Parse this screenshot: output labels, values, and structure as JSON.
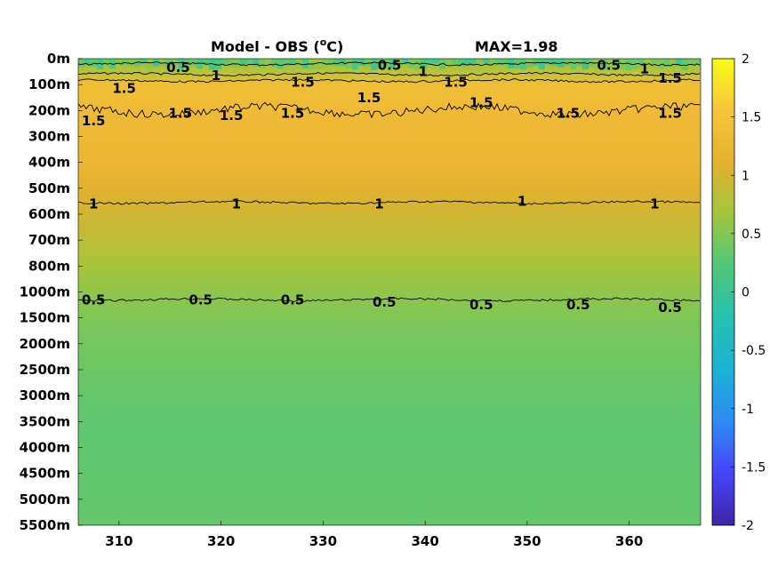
{
  "chart_data": {
    "type": "heatmap",
    "title": "Model - OBS (",
    "title_unit_sup": "o",
    "title_unit_tail": "C)",
    "max_label": "MAX=1.98",
    "y_tick_labels": [
      "0m",
      "100m",
      "200m",
      "300m",
      "400m",
      "500m",
      "600m",
      "700m",
      "800m",
      "1000m",
      "1500m",
      "2000m",
      "2500m",
      "3000m",
      "3500m",
      "4000m",
      "4500m",
      "5000m",
      "5500m"
    ],
    "x_ticks": [
      310,
      320,
      330,
      340,
      350,
      360
    ],
    "x_range": [
      306,
      367
    ],
    "colorbar": {
      "ticks": [
        2,
        1.5,
        1,
        0.5,
        0,
        -0.5,
        -1,
        -1.5,
        -2
      ],
      "tick_labels": [
        "2",
        "1.5",
        "1",
        "0.5",
        "0",
        "-0.5",
        "-1",
        "-1.5",
        "-2"
      ],
      "range": [
        -2,
        2
      ],
      "colormap": [
        "#3e26a8",
        "#4743f8",
        "#2d8cf3",
        "#1bb2d5",
        "#26c0b0",
        "#50c77a",
        "#a0c63e",
        "#e5b02f",
        "#f7c53c",
        "#f9fb15"
      ]
    },
    "depth_profile": [
      {
        "depth_index": 0,
        "value": 0.2
      },
      {
        "depth_index": 0.3,
        "value": 0.7
      },
      {
        "depth_index": 1,
        "value": 1.4
      },
      {
        "depth_index": 2,
        "value": 1.35
      },
      {
        "depth_index": 4,
        "value": 1.25
      },
      {
        "depth_index": 5,
        "value": 1.1
      },
      {
        "depth_index": 6,
        "value": 0.98
      },
      {
        "depth_index": 7,
        "value": 0.85
      },
      {
        "depth_index": 8,
        "value": 0.72
      },
      {
        "depth_index": 9,
        "value": 0.58
      },
      {
        "depth_index": 10,
        "value": 0.48
      },
      {
        "depth_index": 11,
        "value": 0.42
      },
      {
        "depth_index": 12,
        "value": 0.38
      },
      {
        "depth_index": 14,
        "value": 0.3
      },
      {
        "depth_index": 18,
        "value": 0.33
      }
    ],
    "contour_labels": [
      {
        "text": "0.5",
        "x": 315.8,
        "depth_index": 0.35
      },
      {
        "text": "1",
        "x": 319.5,
        "depth_index": 0.65
      },
      {
        "text": "1.5",
        "x": 310.5,
        "depth_index": 1.15
      },
      {
        "text": "1.5",
        "x": 328.0,
        "depth_index": 0.9
      },
      {
        "text": "0.5",
        "x": 336.5,
        "depth_index": 0.25
      },
      {
        "text": "1",
        "x": 339.8,
        "depth_index": 0.5
      },
      {
        "text": "1.5",
        "x": 343.0,
        "depth_index": 0.9
      },
      {
        "text": "0.5",
        "x": 358.0,
        "depth_index": 0.25
      },
      {
        "text": "1",
        "x": 361.5,
        "depth_index": 0.4
      },
      {
        "text": "1.5",
        "x": 364.0,
        "depth_index": 0.75
      },
      {
        "text": "1.5",
        "x": 307.5,
        "depth_index": 2.4
      },
      {
        "text": "1.5",
        "x": 316.0,
        "depth_index": 2.1
      },
      {
        "text": "1.5",
        "x": 321.0,
        "depth_index": 2.2
      },
      {
        "text": "1.5",
        "x": 327.0,
        "depth_index": 2.1
      },
      {
        "text": "1.5",
        "x": 334.5,
        "depth_index": 1.5
      },
      {
        "text": "1.5",
        "x": 345.5,
        "depth_index": 1.7
      },
      {
        "text": "1.5",
        "x": 354.0,
        "depth_index": 2.1
      },
      {
        "text": "1.5",
        "x": 364.0,
        "depth_index": 2.1
      },
      {
        "text": "1",
        "x": 307.5,
        "depth_index": 5.6
      },
      {
        "text": "1",
        "x": 321.5,
        "depth_index": 5.6
      },
      {
        "text": "1",
        "x": 335.5,
        "depth_index": 5.6
      },
      {
        "text": "1",
        "x": 349.5,
        "depth_index": 5.5
      },
      {
        "text": "1",
        "x": 362.5,
        "depth_index": 5.6
      },
      {
        "text": "0.5",
        "x": 307.5,
        "depth_index": 9.3
      },
      {
        "text": "0.5",
        "x": 318.0,
        "depth_index": 9.3
      },
      {
        "text": "0.5",
        "x": 327.0,
        "depth_index": 9.3
      },
      {
        "text": "0.5",
        "x": 336.0,
        "depth_index": 9.4
      },
      {
        "text": "0.5",
        "x": 345.5,
        "depth_index": 9.5
      },
      {
        "text": "0.5",
        "x": 355.0,
        "depth_index": 9.5
      },
      {
        "text": "0.5",
        "x": 364.0,
        "depth_index": 9.6
      }
    ],
    "contour_lines": [
      {
        "level": 0.5,
        "depth_index": 0.2
      },
      {
        "level": 1,
        "depth_index": 0.6
      },
      {
        "level": 1.5,
        "depth_index": 0.85
      },
      {
        "level": 1.5,
        "depth_index": 2.0
      },
      {
        "level": 1,
        "depth_index": 5.55
      },
      {
        "level": 0.5,
        "depth_index": 9.3
      }
    ]
  }
}
